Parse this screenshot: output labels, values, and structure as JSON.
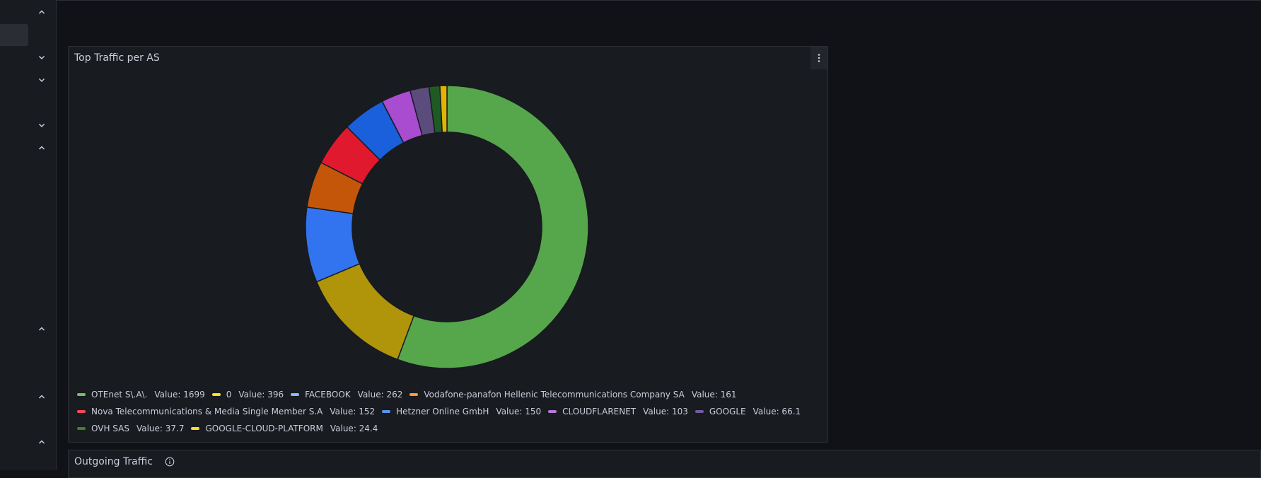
{
  "panel": {
    "title": "Top Traffic per AS"
  },
  "next_panel": {
    "title": "Outgoing Traffic"
  },
  "legend_value_prefix": "Value:",
  "chart_data": {
    "type": "pie",
    "donut": true,
    "title": "Top Traffic per AS",
    "slices": [
      {
        "name": "OTEnet S\\.A\\.",
        "value": 1699,
        "display": "1699",
        "color": "#56a64b"
      },
      {
        "name": "0",
        "value": 396,
        "display": "396",
        "color": "#b0950b"
      },
      {
        "name": "FACEBOOK",
        "value": 262,
        "display": "262",
        "color": "#3274f0"
      },
      {
        "name": "Vodafone-panafon Hellenic Telecommunications Company SA",
        "value": 161,
        "display": "161",
        "color": "#c4560a"
      },
      {
        "name": "Nova Telecommunications & Media Single Member S.A",
        "value": 152,
        "display": "152",
        "color": "#e0192f"
      },
      {
        "name": "Hetzner Online GmbH",
        "value": 150,
        "display": "150",
        "color": "#1a5fdb"
      },
      {
        "name": "CLOUDFLARENET",
        "value": 103,
        "display": "103",
        "color": "#a94cd0"
      },
      {
        "name": "GOOGLE",
        "value": 66.1,
        "display": "66.1",
        "color": "#5c4c7e"
      },
      {
        "name": "OVH SAS",
        "value": 37.7,
        "display": "37.7",
        "color": "#1f5a22"
      },
      {
        "name": "GOOGLE-CLOUD-PLATFORM",
        "value": 24.4,
        "display": "24.4",
        "color": "#e0b400"
      }
    ],
    "legend_colors": [
      "#73bf69",
      "#fade2a",
      "#8ab8ff",
      "#ff9830",
      "#f2495c",
      "#5794f2",
      "#b877d9",
      "#705da0",
      "#37872d",
      "#fade2a"
    ],
    "legend_placement": "bottom"
  }
}
